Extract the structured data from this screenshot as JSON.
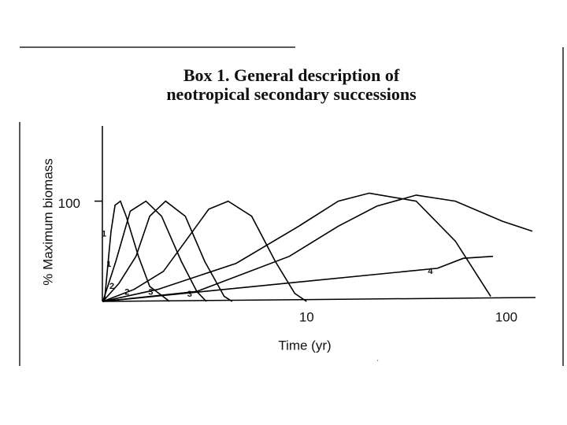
{
  "chart_data": {
    "type": "line",
    "title": [
      "Box 1. General description of",
      "neotropical secondary successions"
    ],
    "xlabel": "Time (yr)",
    "ylabel": "% Maximum biomass",
    "xscale": "log",
    "xlim": [
      0.95,
      140
    ],
    "xticks": [
      10,
      100
    ],
    "ylim": [
      0,
      175
    ],
    "yticks": [
      100
    ],
    "color": "#000000",
    "series": [
      {
        "name": "1",
        "x": [
          0.973,
          1.05,
          1.1,
          1.17,
          1.25,
          1.44,
          1.64,
          2.06
        ],
        "values": [
          0,
          70,
          96,
          100,
          85,
          45,
          15,
          0
        ]
      },
      {
        "name": "1",
        "x": [
          0.955,
          1.11,
          1.31,
          1.57,
          1.88,
          2.36,
          2.82,
          3.15
        ],
        "values": [
          0,
          40,
          90,
          100,
          85,
          40,
          10,
          0
        ]
      },
      {
        "name": "2",
        "x": [
          0.955,
          1.15,
          1.4,
          1.64,
          1.97,
          2.47,
          3.09,
          3.87,
          4.24
        ],
        "values": [
          0,
          18,
          45,
          85,
          100,
          85,
          40,
          5,
          0
        ]
      },
      {
        "name": "2",
        "x": [
          0.955,
          1.37,
          1.92,
          2.58,
          3.24,
          4.05,
          5.31,
          6.97,
          8.73,
          10
        ],
        "values": [
          0,
          12,
          30,
          65,
          92,
          100,
          85,
          40,
          8,
          0
        ]
      },
      {
        "name": "3",
        "x": [
          0.955,
          1.8,
          4.44,
          9.14,
          14.4,
          20.6,
          35.4,
          55.6,
          83.5
        ],
        "values": [
          0,
          12,
          38,
          75,
          100,
          108,
          100,
          60,
          5
        ]
      },
      {
        "name": "3",
        "x": [
          0.955,
          2.82,
          8.2,
          14.4,
          22.5,
          35.4,
          55.6,
          95.6,
          135
        ],
        "values": [
          0,
          10,
          45,
          75,
          95,
          106,
          100,
          80,
          70
        ]
      },
      {
        "name": "4",
        "x": [
          0.955,
          45.2,
          60.9,
          85.8
        ],
        "values": [
          0,
          33,
          43,
          45
        ]
      }
    ]
  }
}
